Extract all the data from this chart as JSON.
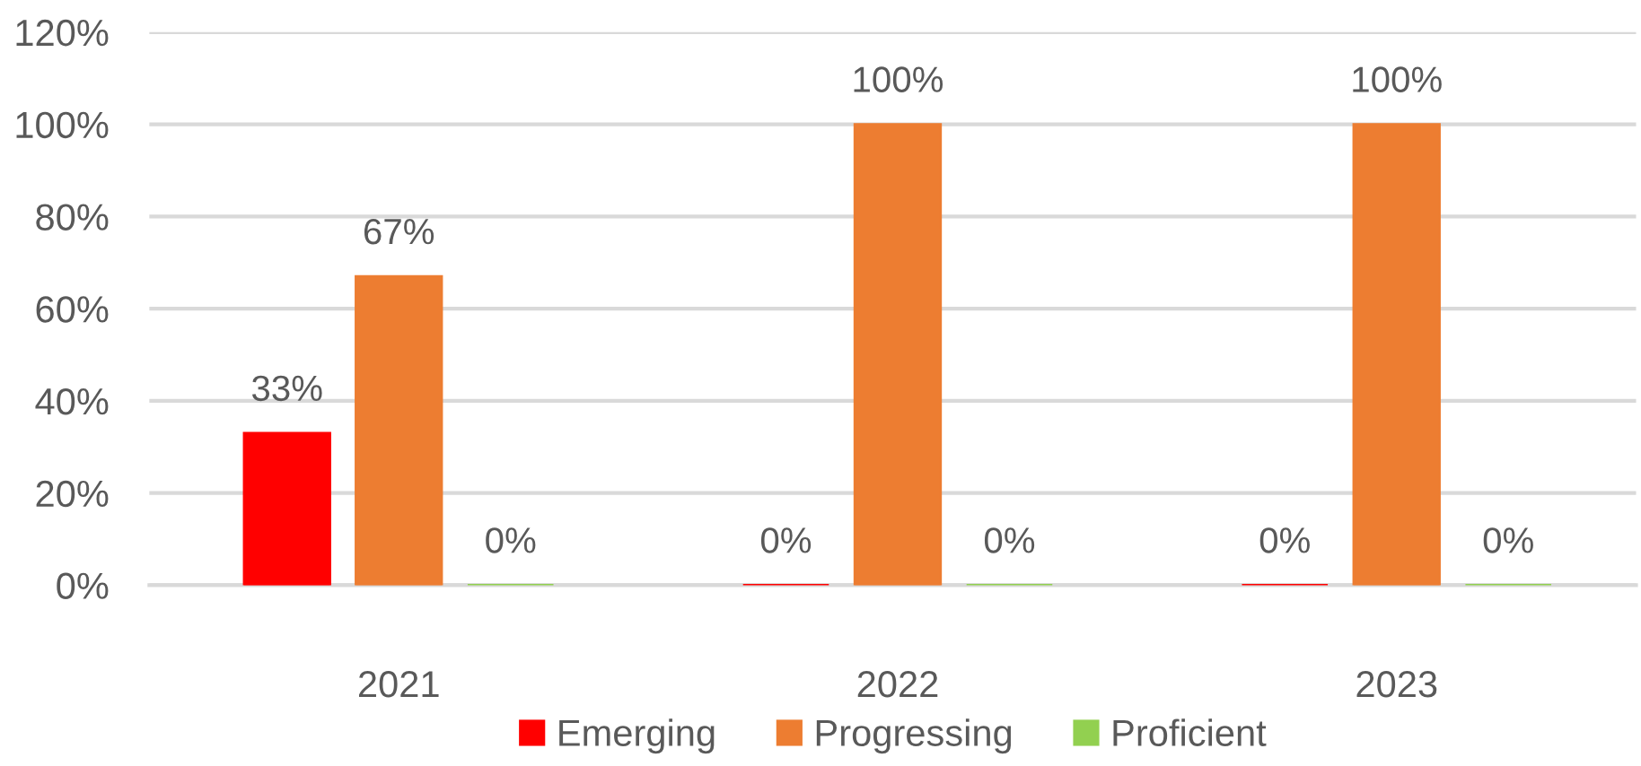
{
  "chart_data": {
    "type": "bar",
    "categories": [
      "2021",
      "2022",
      "2023"
    ],
    "series": [
      {
        "name": "Emerging",
        "color": "#ff0000",
        "values": [
          33,
          0,
          0
        ],
        "value_labels": [
          "33%",
          "0%",
          "0%"
        ]
      },
      {
        "name": "Progressing",
        "color": "#ed7d31",
        "values": [
          67,
          100,
          100
        ],
        "value_labels": [
          "67%",
          "100%",
          "100%"
        ]
      },
      {
        "name": "Proficient",
        "color": "#92d050",
        "values": [
          0,
          0,
          0
        ],
        "value_labels": [
          "0%",
          "0%",
          "0%"
        ]
      }
    ],
    "ylim": [
      0,
      120
    ],
    "yticks": [
      {
        "value": 0,
        "label": "0%"
      },
      {
        "value": 20,
        "label": "20%"
      },
      {
        "value": 40,
        "label": "40%"
      },
      {
        "value": 60,
        "label": "60%"
      },
      {
        "value": 80,
        "label": "80%"
      },
      {
        "value": 100,
        "label": "100%"
      },
      {
        "value": 120,
        "label": "120%"
      }
    ],
    "grid": "y",
    "legend": "bottom"
  }
}
